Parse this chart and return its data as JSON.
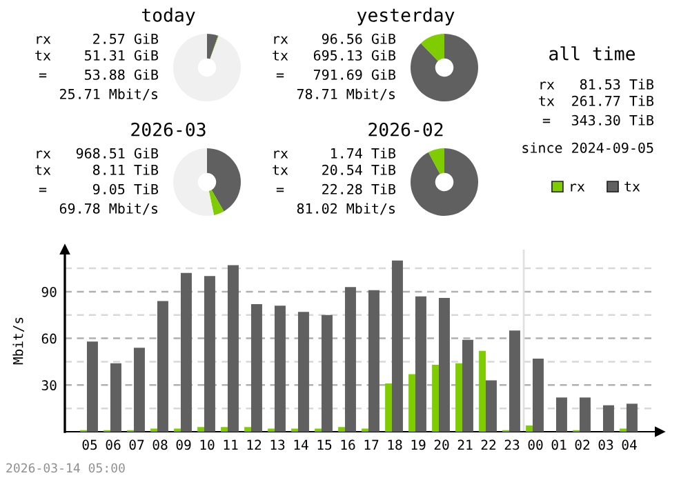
{
  "chart_data": [
    {
      "type": "donut",
      "title": "today",
      "categories": [
        null,
        null,
        null
      ],
      "values": [
        5.3,
        0.3,
        94.4
      ],
      "colors": [
        "#606060",
        "#7fcc00",
        "#f0f0f0"
      ],
      "annotations": [
        "rx",
        "2.57 GiB",
        "tx",
        "51.31 GiB",
        "=",
        "53.88 GiB",
        "25.71 Mbit/s"
      ]
    },
    {
      "type": "donut",
      "title": "yesterday",
      "categories": [
        null,
        null,
        null
      ],
      "values": [
        87.8,
        12.2,
        0
      ],
      "colors": [
        "#606060",
        "#7fcc00",
        "#f0f0f0"
      ],
      "annotations": [
        "rx",
        "96.56 GiB",
        "tx",
        "695.13 GiB",
        "=",
        "791.69 GiB",
        "78.71 Mbit/s"
      ]
    },
    {
      "type": "other",
      "title": "all time",
      "annotations": [
        "rx",
        "81.53 TiB",
        "tx",
        "261.77 TiB",
        "=",
        "343.30 TiB",
        "since 2024-09-05"
      ]
    },
    {
      "type": "donut",
      "title": "2026-03",
      "categories": [
        null,
        null,
        null
      ],
      "values": [
        41.7,
        5.0,
        53.3
      ],
      "colors": [
        "#606060",
        "#7fcc00",
        "#f0f0f0"
      ],
      "annotations": [
        "rx",
        "968.51 GiB",
        "tx",
        "8.11 TiB",
        "=",
        "9.05 TiB",
        "69.78 Mbit/s"
      ]
    },
    {
      "type": "donut",
      "title": "2026-02",
      "categories": [
        null,
        null,
        null
      ],
      "values": [
        92.2,
        7.8,
        0
      ],
      "colors": [
        "#606060",
        "#7fcc00",
        "#f0f0f0"
      ],
      "annotations": [
        "rx",
        "1.74 TiB",
        "tx",
        "20.54 TiB",
        "=",
        "22.28 TiB",
        "81.02 Mbit/s"
      ]
    },
    {
      "type": "bar",
      "ylabel": "Mbit/s",
      "categories": [
        "05",
        "06",
        "07",
        "08",
        "09",
        "10",
        "11",
        "12",
        "13",
        "14",
        "15",
        "16",
        "17",
        "18",
        "19",
        "20",
        "21",
        "22",
        "23",
        "00",
        "01",
        "02",
        "03",
        "04"
      ],
      "series": [
        {
          "name": "rx",
          "color": "#7fcc00",
          "values": [
            1,
            1,
            1,
            2,
            2,
            3,
            3,
            3,
            2,
            2,
            2,
            3,
            2,
            31,
            37,
            43,
            44,
            52,
            1,
            4,
            0,
            1,
            0,
            2
          ]
        },
        {
          "name": "tx",
          "color": "#606060",
          "values": [
            58,
            44,
            54,
            84,
            102,
            100,
            107,
            82,
            81,
            77,
            75,
            93,
            91,
            110,
            87,
            86,
            59,
            33,
            65,
            47,
            22,
            22,
            17,
            18
          ]
        }
      ],
      "ylim": [
        0,
        117
      ],
      "yticks": [
        {
          "value": 15,
          "label": null
        },
        30,
        {
          "value": 45,
          "label": null
        },
        60,
        {
          "value": 75,
          "label": null
        },
        90,
        {
          "value": 105,
          "label": null
        }
      ],
      "grid": "y",
      "legend": "top right",
      "ref_lines": [
        {
          "axis": "x",
          "value": "00",
          "color": "#e0e0e0"
        }
      ],
      "annotations": [
        "2026-03-14 05:00"
      ]
    }
  ]
}
